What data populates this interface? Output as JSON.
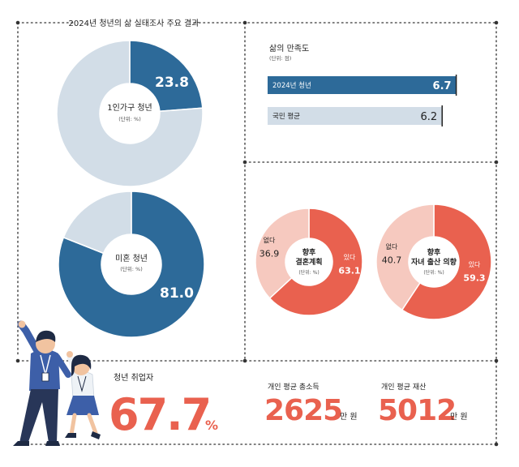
{
  "header": {
    "title": "2024년 청년의 삶 실태조사 주요 결과"
  },
  "colors": {
    "navy": "#2d6a99",
    "light_blue": "#d2dde7",
    "coral": "#e9614f",
    "pink": "#f6c9bf",
    "dark": "#222222",
    "dot_border": "#555555"
  },
  "panels": {
    "single_person": {
      "label": "1인가구 청년",
      "unit": "(단위: %)"
    },
    "unmarried": {
      "label": "미혼 청년",
      "unit": "(단위: %)"
    },
    "marriage_plan": {
      "label_line1": "향후",
      "label_line2": "결혼계획",
      "unit": "(단위: %)"
    },
    "childbirth_plan": {
      "label_line1": "향후",
      "label_line2": "자녀 출산 의향",
      "unit": "(단위: %)"
    },
    "satisfaction": {
      "title": "삶의 만족도",
      "unit": "(단위: 점)"
    }
  },
  "employment": {
    "label": "청년 취업자",
    "value": "67.7",
    "unit": "%"
  },
  "income": {
    "label": "개인 평균 총소득",
    "value": "2625",
    "unit": "만 원"
  },
  "assets": {
    "label": "개인 평균 재산",
    "value": "5012",
    "unit": "만 원"
  },
  "chart_data": [
    {
      "type": "pie",
      "id": "single_person",
      "center_label": "1인가구 청년",
      "unit": "%",
      "slices": [
        {
          "label": "",
          "value": 23.8,
          "display": "23.8"
        },
        {
          "label": "",
          "value": 76.2,
          "display": ""
        }
      ]
    },
    {
      "type": "pie",
      "id": "unmarried",
      "center_label": "미혼 청년",
      "unit": "%",
      "slices": [
        {
          "label": "",
          "value": 81.0,
          "display": "81.0"
        },
        {
          "label": "",
          "value": 19.0,
          "display": ""
        }
      ]
    },
    {
      "type": "pie",
      "id": "marriage_plan",
      "center_label": "향후 결혼계획",
      "unit": "%",
      "slices": [
        {
          "label": "있다",
          "value": 63.1,
          "display": "63.1"
        },
        {
          "label": "없다",
          "value": 36.9,
          "display": "36.9"
        }
      ]
    },
    {
      "type": "pie",
      "id": "childbirth_plan",
      "center_label": "향후 자녀 출산 의향",
      "unit": "%",
      "slices": [
        {
          "label": "있다",
          "value": 59.3,
          "display": "59.3"
        },
        {
          "label": "없다",
          "value": 40.7,
          "display": "40.7"
        }
      ]
    },
    {
      "type": "bar",
      "id": "satisfaction",
      "title": "삶의 만족도",
      "unit": "점",
      "categories": [
        "2024년 청년",
        "국민 평균"
      ],
      "values": [
        6.7,
        6.2
      ],
      "displays": [
        "6.7",
        "6.2"
      ],
      "xlim": [
        0,
        7
      ]
    }
  ]
}
